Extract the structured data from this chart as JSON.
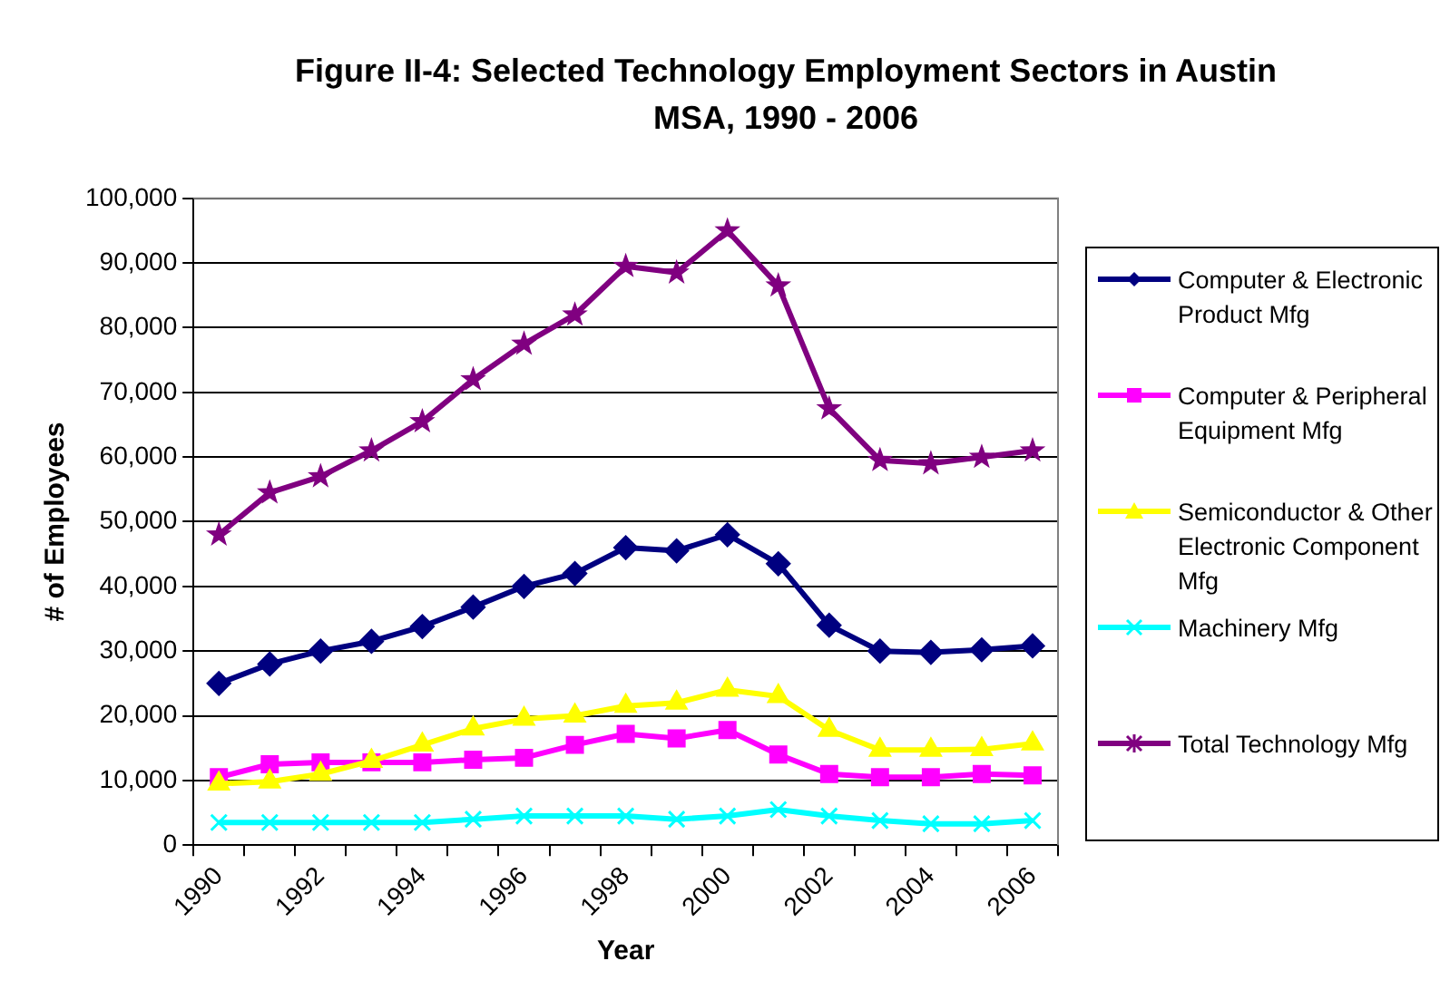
{
  "chart_data": {
    "type": "line",
    "title": "Figure II-4: Selected Technology Employment Sectors in Austin MSA, 1990 - 2006",
    "xlabel": "Year",
    "ylabel": "# of Employees",
    "categories": [
      "1990",
      null,
      "1992",
      null,
      "1994",
      null,
      "1996",
      null,
      "1998",
      null,
      "2000",
      null,
      "2002",
      null,
      "2004",
      null,
      "2006"
    ],
    "series": [
      {
        "name": "Computer & Electronic Product Mfg",
        "color": "#000080",
        "marker": "diamond",
        "values": [
          25000,
          28000,
          30000,
          31500,
          33800,
          36800,
          40000,
          42000,
          46000,
          45500,
          48000,
          43500,
          34000,
          30000,
          29800,
          30200,
          30800
        ]
      },
      {
        "name": "Computer & Peripheral Equipment Mfg",
        "color": "#ff00ff",
        "marker": "square",
        "values": [
          10500,
          12500,
          12800,
          12800,
          12800,
          13200,
          13500,
          15500,
          17200,
          16500,
          17800,
          14000,
          11000,
          10500,
          10500,
          11000,
          10800
        ]
      },
      {
        "name": "Semiconductor & Other Electronic Component Mfg",
        "color": "#ffff00",
        "marker": "triangle",
        "values": [
          9500,
          9800,
          11000,
          13000,
          15500,
          18000,
          19500,
          20000,
          21500,
          22000,
          24000,
          23000,
          17800,
          14700,
          14700,
          14800,
          15700
        ]
      },
      {
        "name": "Machinery Mfg",
        "color": "#00ffff",
        "marker": "cross",
        "values": [
          3500,
          3500,
          3500,
          3500,
          3500,
          4000,
          4500,
          4500,
          4500,
          4000,
          4500,
          5500,
          4500,
          3800,
          3300,
          3300,
          3800
        ]
      },
      {
        "name": "Total Technology Mfg",
        "color": "#800080",
        "marker": "star",
        "values": [
          48000,
          54500,
          57000,
          61000,
          65500,
          72000,
          77500,
          82000,
          89500,
          88500,
          95000,
          86500,
          67500,
          59500,
          59000,
          60000,
          61000
        ]
      }
    ],
    "ylim": [
      0,
      100000
    ],
    "yticks": [
      {
        "value": 0,
        "label": "0"
      },
      {
        "value": 10000,
        "label": "10,000"
      },
      {
        "value": 20000,
        "label": "20,000"
      },
      {
        "value": 30000,
        "label": "30,000"
      },
      {
        "value": 40000,
        "label": "40,000"
      },
      {
        "value": 50000,
        "label": "50,000"
      },
      {
        "value": 60000,
        "label": "60,000"
      },
      {
        "value": 70000,
        "label": "70,000"
      },
      {
        "value": 80000,
        "label": "80,000"
      },
      {
        "value": 90000,
        "label": "90,000"
      },
      {
        "value": 100000,
        "label": "100,000"
      }
    ],
    "grid": "y",
    "legend": "right",
    "line_style": "solid"
  }
}
